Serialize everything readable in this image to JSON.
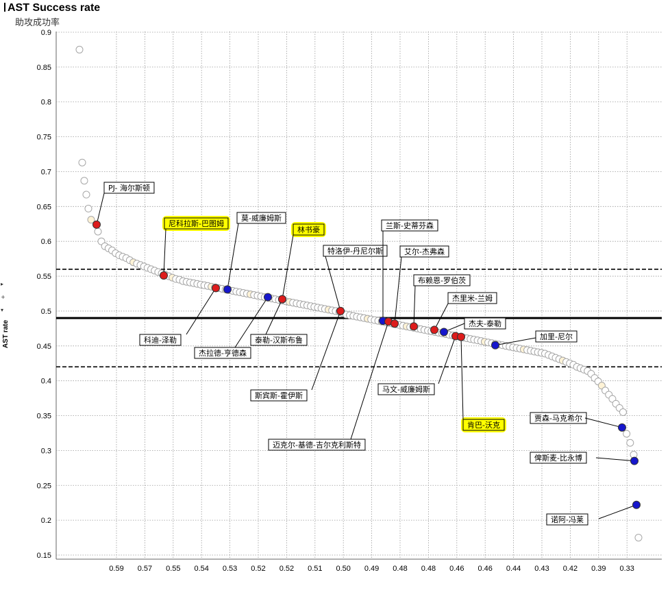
{
  "chart_data": {
    "type": "scatter",
    "title": "AST Success rate",
    "subtitle": "助攻成功率",
    "ylabel": "AST rate",
    "ylim": [
      0.15,
      0.9
    ],
    "yticks": [
      0.9,
      0.85,
      0.8,
      0.75,
      0.7,
      0.65,
      0.6,
      0.55,
      0.5,
      0.45,
      0.4,
      0.35,
      0.3,
      0.25,
      0.2,
      0.15
    ],
    "xtick_labels": [
      "0.59",
      "0.57",
      "0.55",
      "0.54",
      "0.53",
      "0.52",
      "0.52",
      "0.51",
      "0.50",
      "0.49",
      "0.48",
      "0.48",
      "0.46",
      "0.46",
      "0.44",
      "0.43",
      "0.42",
      "0.39",
      "0.33"
    ],
    "grid": true,
    "reference_lines": [
      {
        "y": 0.49,
        "style": "solid"
      },
      {
        "y": 0.56,
        "style": "dashed"
      },
      {
        "y": 0.42,
        "style": "dashed"
      }
    ],
    "colors": {
      "background_point": "#ffffff",
      "background_point_alt": "#fff3d6",
      "red_point": "#dd1c1c",
      "blue_point": "#1616cc",
      "highlight": "#ffff00"
    },
    "background_points_y": [
      0.875,
      0.713,
      0.687,
      0.667,
      0.647,
      0.631,
      0.614,
      0.6,
      0.593,
      0.59,
      0.587,
      0.583,
      0.58,
      0.578,
      0.576,
      0.573,
      0.57,
      0.568,
      0.566,
      0.564,
      0.562,
      0.56,
      0.558,
      0.556,
      0.554,
      0.552,
      0.55,
      0.548,
      0.546,
      0.545,
      0.543,
      0.542,
      0.541,
      0.54,
      0.539,
      0.538,
      0.537,
      0.536,
      0.535,
      0.534,
      0.533,
      0.532,
      0.531,
      0.53,
      0.529,
      0.528,
      0.527,
      0.526,
      0.525,
      0.524,
      0.523,
      0.522,
      0.521,
      0.52,
      0.519,
      0.518,
      0.517,
      0.516,
      0.515,
      0.514,
      0.513,
      0.512,
      0.511,
      0.51,
      0.509,
      0.508,
      0.507,
      0.506,
      0.505,
      0.504,
      0.503,
      0.502,
      0.501,
      0.5,
      0.499,
      0.497,
      0.495,
      0.494,
      0.493,
      0.492,
      0.491,
      0.49,
      0.489,
      0.488,
      0.487,
      0.486,
      0.485,
      0.484,
      0.483,
      0.482,
      0.481,
      0.48,
      0.479,
      0.478,
      0.477,
      0.476,
      0.475,
      0.474,
      0.473,
      0.472,
      0.471,
      0.47,
      0.469,
      0.468,
      0.467,
      0.466,
      0.465,
      0.464,
      0.463,
      0.462,
      0.461,
      0.46,
      0.459,
      0.458,
      0.457,
      0.456,
      0.455,
      0.454,
      0.453,
      0.452,
      0.451,
      0.45,
      0.449,
      0.448,
      0.447,
      0.446,
      0.445,
      0.444,
      0.443,
      0.442,
      0.441,
      0.44,
      0.439,
      0.437,
      0.435,
      0.433,
      0.431,
      0.429,
      0.427,
      0.425,
      0.423,
      0.42,
      0.418,
      0.416,
      0.414,
      0.41,
      0.404,
      0.399,
      0.393,
      0.386,
      0.38,
      0.374,
      0.367,
      0.361,
      0.355,
      0.324,
      0.311,
      0.294,
      0.175
    ],
    "labeled_points": [
      {
        "name": "PJ- 海尔斯顿",
        "y": 0.624,
        "color": "red",
        "highlight": false
      },
      {
        "name": "尼科拉斯-巴图姆",
        "y": 0.551,
        "color": "red",
        "highlight": true
      },
      {
        "name": "科迪-泽勒",
        "y": 0.533,
        "color": "red",
        "highlight": false
      },
      {
        "name": "莫-威廉姆斯",
        "y": 0.531,
        "color": "blue",
        "highlight": false
      },
      {
        "name": "杰拉德-亨德森",
        "y": 0.52,
        "color": "blue",
        "highlight": false
      },
      {
        "name": "林书豪",
        "y": 0.517,
        "color": "red",
        "highlight": true
      },
      {
        "name": "泰勒-汉斯布鲁",
        "y": 0.517,
        "color": "red",
        "highlight": false
      },
      {
        "name": "特洛伊-丹尼尔斯",
        "y": 0.5,
        "color": "red",
        "highlight": false
      },
      {
        "name": "斯宾斯-霍伊斯",
        "y": 0.5,
        "color": "red",
        "highlight": false
      },
      {
        "name": "兰斯-史蒂芬森",
        "y": 0.486,
        "color": "blue",
        "highlight": false
      },
      {
        "name": "迈克尔-基德-吉尔克利斯特",
        "y": 0.485,
        "color": "red",
        "highlight": false
      },
      {
        "name": "艾尔-杰弗森",
        "y": 0.482,
        "color": "red",
        "highlight": false
      },
      {
        "name": "布赖恩-罗伯茨",
        "y": 0.478,
        "color": "red",
        "highlight": false
      },
      {
        "name": "杰里米-兰姆",
        "y": 0.473,
        "color": "red",
        "highlight": false
      },
      {
        "name": "杰夫-泰勒",
        "y": 0.47,
        "color": "blue",
        "highlight": false
      },
      {
        "name": "马文-威廉姆斯",
        "y": 0.464,
        "color": "red",
        "highlight": false
      },
      {
        "name": "肯巴-沃克",
        "y": 0.463,
        "color": "red",
        "highlight": true
      },
      {
        "name": "加里-尼尔",
        "y": 0.451,
        "color": "blue",
        "highlight": false
      },
      {
        "name": "贾森-马克希尔",
        "y": 0.333,
        "color": "blue",
        "highlight": false
      },
      {
        "name": "俾斯麦-比永博",
        "y": 0.285,
        "color": "blue",
        "highlight": false
      },
      {
        "name": "诺阿-冯莱",
        "y": 0.222,
        "color": "blue",
        "highlight": false
      }
    ]
  }
}
